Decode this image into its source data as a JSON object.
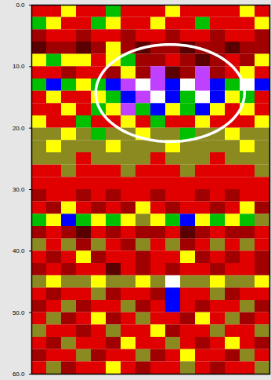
{
  "chart_data": {
    "type": "heatmap",
    "ylim": [
      0,
      60
    ],
    "yticks": [
      {
        "value": 0,
        "label": "0.0"
      },
      {
        "value": 10,
        "label": "10.0"
      },
      {
        "value": 20,
        "label": "20.0"
      },
      {
        "value": 30,
        "label": "30.0"
      },
      {
        "value": 40,
        "label": "40.0"
      },
      {
        "value": 50,
        "label": "50.0"
      },
      {
        "value": 60,
        "label": "60.0"
      }
    ],
    "tick_labels": "y",
    "colors": [
      "#5a0000",
      "#a00000",
      "#e00000",
      "#ff4000",
      "#8a8a20",
      "#ffff00",
      "#00c000",
      "#0000ff",
      "#c040ff",
      "#ffffff"
    ],
    "cells": [
      [
        2,
        2,
        5,
        2,
        2,
        6,
        2,
        2,
        2,
        5,
        2,
        2,
        2,
        2,
        5,
        2
      ],
      [
        6,
        5,
        2,
        2,
        6,
        5,
        2,
        2,
        5,
        2,
        2,
        6,
        2,
        2,
        2,
        5
      ],
      [
        1,
        2,
        2,
        1,
        2,
        2,
        1,
        2,
        2,
        1,
        2,
        2,
        1,
        2,
        2,
        1
      ],
      [
        0,
        1,
        1,
        0,
        1,
        5,
        1,
        0,
        1,
        1,
        0,
        1,
        1,
        0,
        1,
        1
      ],
      [
        5,
        6,
        5,
        5,
        2,
        5,
        6,
        1,
        1,
        2,
        1,
        0,
        1,
        2,
        1,
        5
      ],
      [
        2,
        2,
        1,
        2,
        2,
        1,
        5,
        1,
        8,
        0,
        1,
        8,
        1,
        2,
        5,
        2
      ],
      [
        6,
        7,
        6,
        5,
        6,
        7,
        8,
        9,
        8,
        7,
        9,
        8,
        7,
        6,
        9,
        7
      ],
      [
        2,
        5,
        2,
        2,
        5,
        6,
        7,
        8,
        9,
        7,
        6,
        9,
        7,
        5,
        6,
        2
      ],
      [
        2,
        2,
        5,
        2,
        6,
        5,
        8,
        6,
        7,
        5,
        6,
        7,
        5,
        2,
        5,
        2
      ],
      [
        5,
        2,
        2,
        6,
        2,
        2,
        5,
        2,
        6,
        2,
        2,
        5,
        2,
        2,
        2,
        5
      ],
      [
        4,
        4,
        5,
        4,
        6,
        4,
        4,
        5,
        4,
        4,
        6,
        4,
        4,
        5,
        4,
        4
      ],
      [
        4,
        5,
        4,
        4,
        4,
        5,
        4,
        4,
        4,
        5,
        4,
        4,
        4,
        4,
        5,
        4
      ],
      [
        4,
        4,
        4,
        2,
        4,
        4,
        4,
        4,
        2,
        4,
        4,
        4,
        2,
        4,
        4,
        4
      ],
      [
        2,
        2,
        4,
        2,
        2,
        2,
        4,
        2,
        2,
        2,
        4,
        2,
        2,
        2,
        2,
        4
      ],
      [
        2,
        2,
        2,
        2,
        2,
        2,
        2,
        2,
        2,
        2,
        2,
        2,
        2,
        2,
        2,
        2
      ],
      [
        1,
        2,
        2,
        1,
        2,
        1,
        2,
        2,
        1,
        2,
        2,
        1,
        2,
        1,
        2,
        2
      ],
      [
        2,
        1,
        5,
        2,
        1,
        2,
        1,
        5,
        2,
        1,
        2,
        2,
        1,
        2,
        5,
        1
      ],
      [
        6,
        5,
        7,
        6,
        5,
        6,
        5,
        4,
        5,
        6,
        7,
        5,
        6,
        5,
        6,
        4
      ],
      [
        1,
        2,
        1,
        0,
        2,
        1,
        2,
        1,
        1,
        2,
        0,
        1,
        2,
        1,
        1,
        2
      ],
      [
        4,
        2,
        4,
        1,
        4,
        2,
        1,
        4,
        2,
        4,
        1,
        2,
        4,
        2,
        4,
        2
      ],
      [
        2,
        1,
        2,
        5,
        1,
        2,
        2,
        1,
        2,
        2,
        5,
        1,
        2,
        1,
        2,
        1
      ],
      [
        1,
        2,
        1,
        2,
        2,
        0,
        2,
        1,
        2,
        1,
        2,
        2,
        1,
        2,
        2,
        1
      ],
      [
        4,
        5,
        4,
        4,
        5,
        4,
        4,
        5,
        4,
        9,
        4,
        4,
        5,
        4,
        4,
        5
      ],
      [
        2,
        1,
        2,
        2,
        4,
        1,
        2,
        2,
        1,
        7,
        2,
        2,
        4,
        1,
        2,
        2
      ],
      [
        1,
        2,
        4,
        1,
        2,
        2,
        4,
        1,
        2,
        7,
        2,
        1,
        2,
        2,
        4,
        1
      ],
      [
        2,
        4,
        1,
        2,
        5,
        1,
        2,
        4,
        2,
        2,
        1,
        5,
        2,
        4,
        1,
        2
      ],
      [
        4,
        2,
        2,
        1,
        2,
        4,
        2,
        2,
        5,
        1,
        2,
        2,
        4,
        2,
        2,
        4
      ],
      [
        2,
        1,
        4,
        2,
        2,
        1,
        5,
        2,
        2,
        4,
        2,
        1,
        2,
        5,
        2,
        1
      ],
      [
        1,
        2,
        2,
        4,
        1,
        2,
        2,
        4,
        1,
        2,
        5,
        2,
        2,
        1,
        4,
        2
      ],
      [
        2,
        4,
        1,
        2,
        2,
        5,
        2,
        1,
        2,
        2,
        4,
        2,
        1,
        2,
        2,
        4
      ]
    ],
    "highlight": {
      "shape": "ellipse",
      "cx": 9.3,
      "cy": 14.3,
      "rx": 5,
      "ry": 7.9
    }
  }
}
